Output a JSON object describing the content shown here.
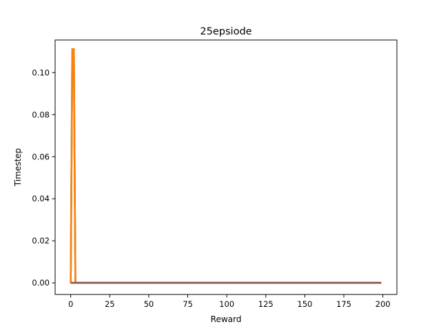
{
  "chart_data": {
    "type": "line",
    "title": "25epsiode",
    "xlabel": "Reward",
    "ylabel": "Timestep",
    "xlim": [
      -10,
      209
    ],
    "ylim": [
      -0.0055,
      0.1155
    ],
    "xticks": [
      0,
      25,
      50,
      75,
      100,
      125,
      150,
      175,
      200
    ],
    "yticks": [
      0.0,
      0.02,
      0.04,
      0.06,
      0.08,
      0.1
    ],
    "ytick_labels": [
      "0.00",
      "0.02",
      "0.04",
      "0.06",
      "0.08",
      "0.10"
    ],
    "grid": false,
    "series": [
      {
        "color": "#2ca02c",
        "x": [
          0,
          1,
          2,
          3,
          199
        ],
        "y": [
          0.0,
          0.1111,
          0.1111,
          0.0,
          0.0
        ]
      },
      {
        "color": "#ff7f0e",
        "x": [
          0,
          1,
          2,
          3,
          199
        ],
        "y": [
          0.0,
          0.1111,
          0.1111,
          0.0,
          0.0
        ]
      },
      {
        "color": "#7f7f7f",
        "x": [
          0,
          199
        ],
        "y": [
          0.0,
          0.0
        ]
      },
      {
        "color": "#8c564b",
        "x": [
          0,
          199
        ],
        "y": [
          0.0,
          0.0
        ]
      }
    ]
  }
}
